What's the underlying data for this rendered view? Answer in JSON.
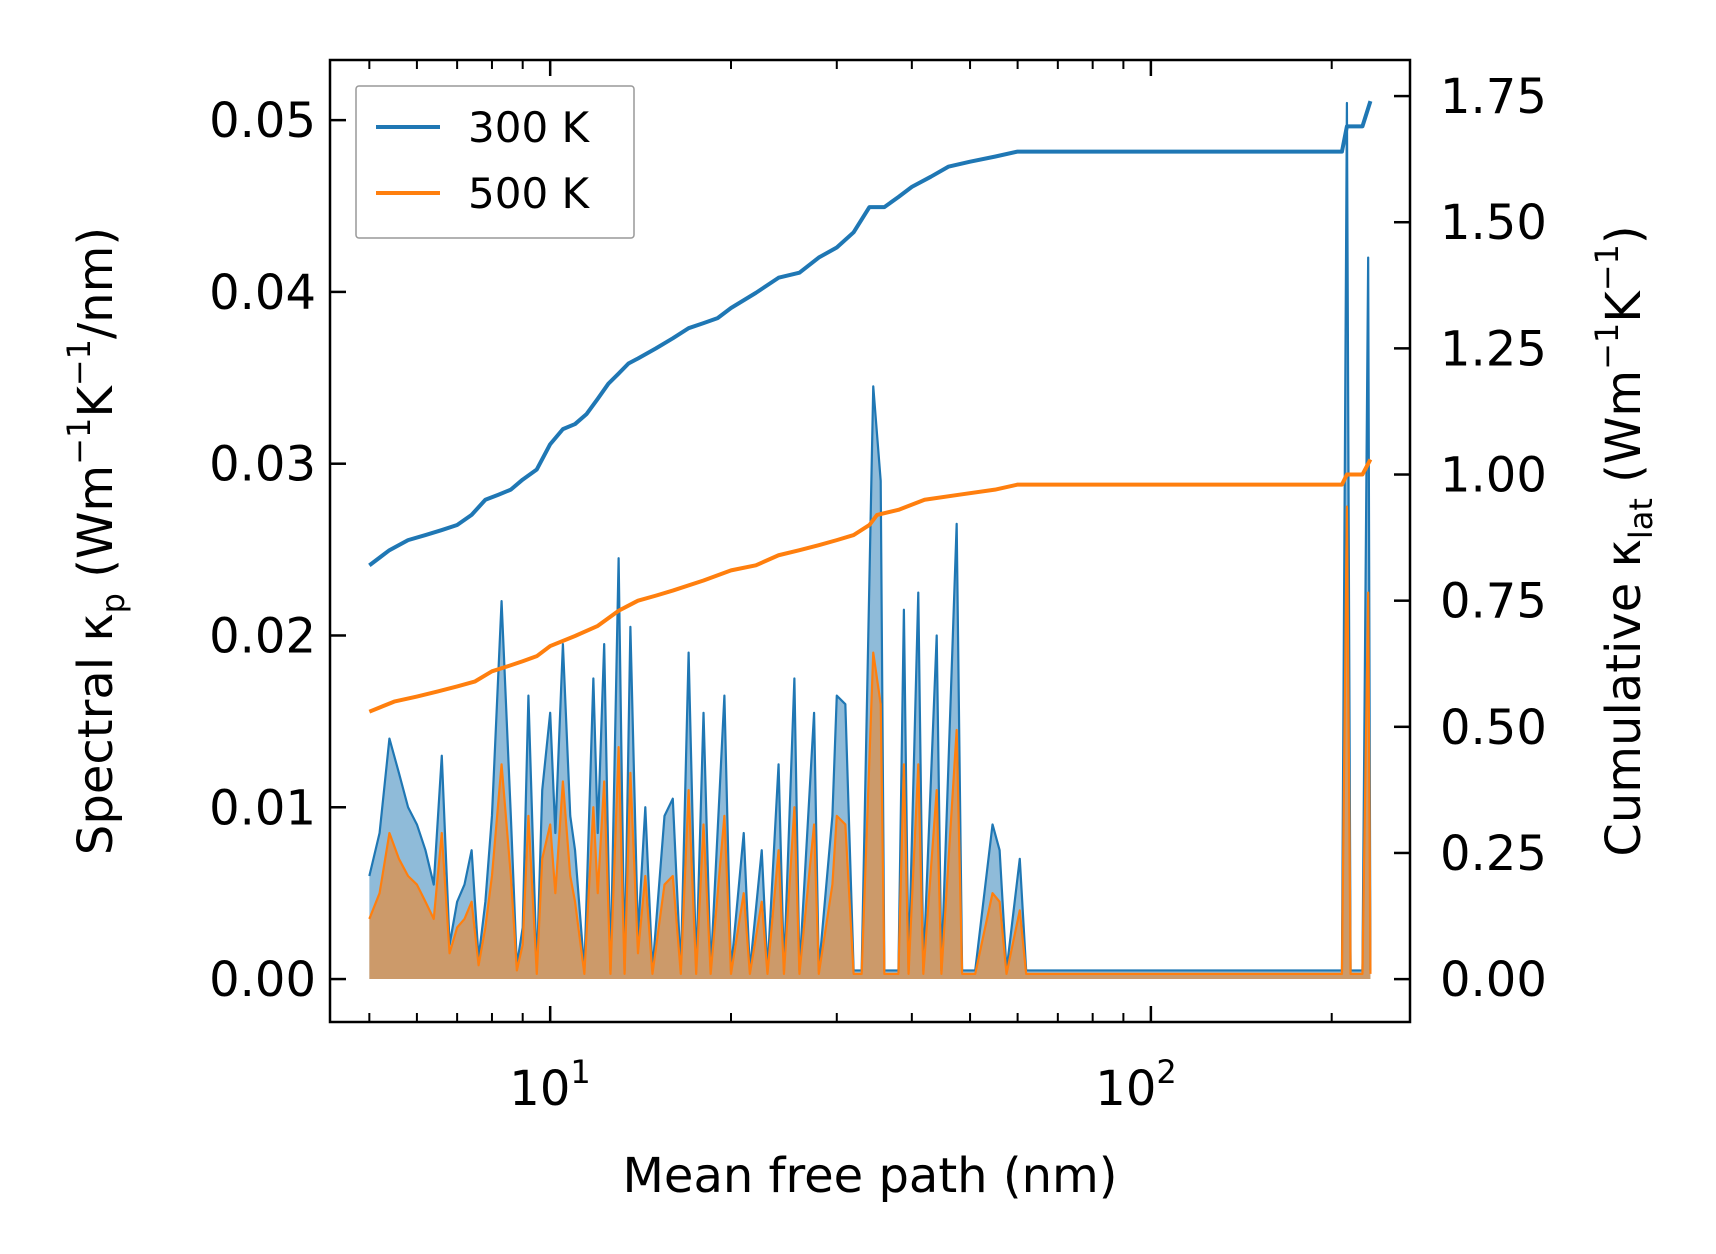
{
  "chart_data": {
    "type": "line",
    "x_scale": "log",
    "xlabel": "Mean free path (nm)",
    "xlim": [
      4.3,
      270
    ],
    "x_ticks": [
      {
        "value": 10,
        "base": "10",
        "exp": "1"
      },
      {
        "value": 100,
        "base": "10",
        "exp": "2"
      }
    ],
    "ylabel_left": {
      "pre": "Spectral κ",
      "sub": "p",
      "mid1": " (Wm",
      "sup1": "−1",
      "mid2": "K",
      "sup2": "−1",
      "post": "/nm)"
    },
    "ylabel_right": {
      "pre": "Cumulative κ",
      "sub": "lat",
      "mid1": " (Wm",
      "sup1": "−1",
      "mid2": "K",
      "sup2": "−1",
      "post": ")"
    },
    "ylim_left": [
      -0.0025,
      0.0535
    ],
    "ylim_right": [
      -0.085,
      1.8215
    ],
    "yticks_left": [
      "0.00",
      "0.01",
      "0.02",
      "0.03",
      "0.04",
      "0.05"
    ],
    "yticks_right": [
      "0.00",
      "0.25",
      "0.50",
      "0.75",
      "1.00",
      "1.25",
      "1.50",
      "1.75"
    ],
    "legend": {
      "location": "top-left",
      "entries": [
        {
          "label": "300 K",
          "color": "#1f77b4"
        },
        {
          "label": "500 K",
          "color": "#ff7f0e"
        }
      ]
    },
    "series": [
      {
        "name": "300 K",
        "color": "#1f77b4",
        "spectral": [
          [
            5.0,
            0.006
          ],
          [
            5.2,
            0.0085
          ],
          [
            5.4,
            0.014
          ],
          [
            5.6,
            0.012
          ],
          [
            5.8,
            0.01
          ],
          [
            6.0,
            0.009
          ],
          [
            6.2,
            0.0075
          ],
          [
            6.4,
            0.0055
          ],
          [
            6.6,
            0.013
          ],
          [
            6.8,
            0.002
          ],
          [
            7.0,
            0.0045
          ],
          [
            7.2,
            0.0055
          ],
          [
            7.4,
            0.0075
          ],
          [
            7.6,
            0.0012
          ],
          [
            7.8,
            0.0045
          ],
          [
            8.0,
            0.0095
          ],
          [
            8.3,
            0.022
          ],
          [
            8.6,
            0.0095
          ],
          [
            8.8,
            0.0008
          ],
          [
            9.0,
            0.003
          ],
          [
            9.2,
            0.0165
          ],
          [
            9.5,
            0.0005
          ],
          [
            9.7,
            0.011
          ],
          [
            10.0,
            0.0155
          ],
          [
            10.2,
            0.0085
          ],
          [
            10.5,
            0.0195
          ],
          [
            10.8,
            0.0095
          ],
          [
            11.0,
            0.0075
          ],
          [
            11.4,
            0.0005
          ],
          [
            11.8,
            0.0175
          ],
          [
            12.0,
            0.0085
          ],
          [
            12.3,
            0.0195
          ],
          [
            12.6,
            0.0005
          ],
          [
            13.0,
            0.0245
          ],
          [
            13.3,
            0.0005
          ],
          [
            13.6,
            0.0205
          ],
          [
            14.0,
            0.0025
          ],
          [
            14.4,
            0.01
          ],
          [
            14.8,
            0.0005
          ],
          [
            15.5,
            0.0095
          ],
          [
            16.0,
            0.0105
          ],
          [
            16.5,
            0.0005
          ],
          [
            17.0,
            0.019
          ],
          [
            17.5,
            0.0005
          ],
          [
            18.0,
            0.0155
          ],
          [
            18.5,
            0.0005
          ],
          [
            19.5,
            0.0165
          ],
          [
            20.0,
            0.0005
          ],
          [
            21.0,
            0.0085
          ],
          [
            21.5,
            0.0005
          ],
          [
            22.5,
            0.0075
          ],
          [
            23.0,
            0.0005
          ],
          [
            24.0,
            0.0125
          ],
          [
            24.5,
            0.0005
          ],
          [
            25.5,
            0.0175
          ],
          [
            26.0,
            0.0005
          ],
          [
            27.5,
            0.0155
          ],
          [
            28.0,
            0.0005
          ],
          [
            29.5,
            0.0095
          ],
          [
            30.0,
            0.0165
          ],
          [
            31.0,
            0.016
          ],
          [
            32.0,
            0.0005
          ],
          [
            33.0,
            0.0005
          ],
          [
            34.5,
            0.0345
          ],
          [
            35.5,
            0.029
          ],
          [
            36.0,
            0.0005
          ],
          [
            38.0,
            0.0005
          ],
          [
            38.8,
            0.0215
          ],
          [
            39.5,
            0.0005
          ],
          [
            41.0,
            0.0225
          ],
          [
            41.8,
            0.0005
          ],
          [
            44.0,
            0.02
          ],
          [
            44.8,
            0.0005
          ],
          [
            47.5,
            0.0265
          ],
          [
            48.5,
            0.0005
          ],
          [
            51.0,
            0.0005
          ],
          [
            54.5,
            0.009
          ],
          [
            56.0,
            0.0075
          ],
          [
            57.5,
            0.0005
          ],
          [
            60.5,
            0.007
          ],
          [
            62.0,
            0.0005
          ],
          [
            65.0,
            0.0005
          ],
          [
            120.0,
            0.0005
          ],
          [
            208.0,
            0.0005
          ],
          [
            212.0,
            0.051
          ],
          [
            215.0,
            0.0005
          ],
          [
            225.0,
            0.0005
          ],
          [
            230.0,
            0.042
          ],
          [
            232.0,
            0.0005
          ]
        ],
        "cumulative": [
          [
            5.0,
            0.82
          ],
          [
            5.4,
            0.85
          ],
          [
            5.8,
            0.87
          ],
          [
            6.2,
            0.88
          ],
          [
            6.6,
            0.89
          ],
          [
            7.0,
            0.9
          ],
          [
            7.4,
            0.92
          ],
          [
            7.8,
            0.95
          ],
          [
            8.2,
            0.96
          ],
          [
            8.6,
            0.97
          ],
          [
            9.0,
            0.99
          ],
          [
            9.5,
            1.01
          ],
          [
            10.0,
            1.06
          ],
          [
            10.5,
            1.09
          ],
          [
            11.0,
            1.1
          ],
          [
            11.5,
            1.12
          ],
          [
            12.0,
            1.15
          ],
          [
            12.5,
            1.18
          ],
          [
            13.0,
            1.2
          ],
          [
            13.5,
            1.22
          ],
          [
            14.0,
            1.23
          ],
          [
            15.0,
            1.25
          ],
          [
            16.0,
            1.27
          ],
          [
            17.0,
            1.29
          ],
          [
            18.0,
            1.3
          ],
          [
            19.0,
            1.31
          ],
          [
            20.0,
            1.33
          ],
          [
            22.0,
            1.36
          ],
          [
            24.0,
            1.39
          ],
          [
            26.0,
            1.4
          ],
          [
            28.0,
            1.43
          ],
          [
            30.0,
            1.45
          ],
          [
            32.0,
            1.48
          ],
          [
            34.0,
            1.53
          ],
          [
            36.0,
            1.53
          ],
          [
            38.0,
            1.55
          ],
          [
            40.0,
            1.57
          ],
          [
            43.0,
            1.59
          ],
          [
            46.0,
            1.61
          ],
          [
            50.0,
            1.62
          ],
          [
            55.0,
            1.63
          ],
          [
            60.0,
            1.64
          ],
          [
            100.0,
            1.64
          ],
          [
            150.0,
            1.64
          ],
          [
            208.0,
            1.64
          ],
          [
            212.0,
            1.69
          ],
          [
            225.0,
            1.69
          ],
          [
            232.0,
            1.74
          ]
        ]
      },
      {
        "name": "500 K",
        "color": "#ff7f0e",
        "spectral": [
          [
            5.0,
            0.0035
          ],
          [
            5.2,
            0.005
          ],
          [
            5.4,
            0.0085
          ],
          [
            5.6,
            0.007
          ],
          [
            5.8,
            0.006
          ],
          [
            6.0,
            0.0055
          ],
          [
            6.2,
            0.0045
          ],
          [
            6.4,
            0.0035
          ],
          [
            6.6,
            0.0085
          ],
          [
            6.8,
            0.0015
          ],
          [
            7.0,
            0.003
          ],
          [
            7.2,
            0.0035
          ],
          [
            7.4,
            0.0045
          ],
          [
            7.6,
            0.0008
          ],
          [
            7.8,
            0.003
          ],
          [
            8.0,
            0.006
          ],
          [
            8.3,
            0.0125
          ],
          [
            8.6,
            0.006
          ],
          [
            8.8,
            0.0005
          ],
          [
            9.0,
            0.002
          ],
          [
            9.2,
            0.0095
          ],
          [
            9.5,
            0.0003
          ],
          [
            9.7,
            0.007
          ],
          [
            10.0,
            0.009
          ],
          [
            10.2,
            0.005
          ],
          [
            10.5,
            0.0115
          ],
          [
            10.8,
            0.006
          ],
          [
            11.0,
            0.0045
          ],
          [
            11.4,
            0.0003
          ],
          [
            11.8,
            0.01
          ],
          [
            12.0,
            0.005
          ],
          [
            12.3,
            0.0115
          ],
          [
            12.6,
            0.0003
          ],
          [
            13.0,
            0.0135
          ],
          [
            13.3,
            0.0003
          ],
          [
            13.6,
            0.012
          ],
          [
            14.0,
            0.0015
          ],
          [
            14.4,
            0.006
          ],
          [
            14.8,
            0.0003
          ],
          [
            15.5,
            0.0055
          ],
          [
            16.0,
            0.006
          ],
          [
            16.5,
            0.0003
          ],
          [
            17.0,
            0.011
          ],
          [
            17.5,
            0.0003
          ],
          [
            18.0,
            0.009
          ],
          [
            18.5,
            0.0003
          ],
          [
            19.5,
            0.0095
          ],
          [
            20.0,
            0.0003
          ],
          [
            21.0,
            0.005
          ],
          [
            21.5,
            0.0003
          ],
          [
            22.5,
            0.0045
          ],
          [
            23.0,
            0.0003
          ],
          [
            24.0,
            0.0075
          ],
          [
            24.5,
            0.0003
          ],
          [
            25.5,
            0.01
          ],
          [
            26.0,
            0.0003
          ],
          [
            27.5,
            0.009
          ],
          [
            28.0,
            0.0003
          ],
          [
            29.5,
            0.0055
          ],
          [
            30.0,
            0.0095
          ],
          [
            31.0,
            0.009
          ],
          [
            32.0,
            0.0003
          ],
          [
            33.0,
            0.0003
          ],
          [
            34.5,
            0.019
          ],
          [
            35.5,
            0.016
          ],
          [
            36.0,
            0.0003
          ],
          [
            38.0,
            0.0003
          ],
          [
            38.8,
            0.0125
          ],
          [
            39.5,
            0.0003
          ],
          [
            41.0,
            0.0125
          ],
          [
            41.8,
            0.0003
          ],
          [
            44.0,
            0.011
          ],
          [
            44.8,
            0.0003
          ],
          [
            47.5,
            0.0145
          ],
          [
            48.5,
            0.0003
          ],
          [
            51.0,
            0.0003
          ],
          [
            54.5,
            0.005
          ],
          [
            56.0,
            0.0045
          ],
          [
            57.5,
            0.0003
          ],
          [
            60.5,
            0.004
          ],
          [
            62.0,
            0.0003
          ],
          [
            65.0,
            0.0003
          ],
          [
            120.0,
            0.0003
          ],
          [
            208.0,
            0.0003
          ],
          [
            212.0,
            0.0275
          ],
          [
            215.0,
            0.0003
          ],
          [
            225.0,
            0.0003
          ],
          [
            230.0,
            0.0225
          ],
          [
            232.0,
            0.0003
          ]
        ],
        "cumulative": [
          [
            5.0,
            0.53
          ],
          [
            5.5,
            0.55
          ],
          [
            6.0,
            0.56
          ],
          [
            6.5,
            0.57
          ],
          [
            7.0,
            0.58
          ],
          [
            7.5,
            0.59
          ],
          [
            8.0,
            0.61
          ],
          [
            8.5,
            0.62
          ],
          [
            9.0,
            0.63
          ],
          [
            9.5,
            0.64
          ],
          [
            10.0,
            0.66
          ],
          [
            11.0,
            0.68
          ],
          [
            12.0,
            0.7
          ],
          [
            13.0,
            0.73
          ],
          [
            14.0,
            0.75
          ],
          [
            15.0,
            0.76
          ],
          [
            16.0,
            0.77
          ],
          [
            18.0,
            0.79
          ],
          [
            20.0,
            0.81
          ],
          [
            22.0,
            0.82
          ],
          [
            24.0,
            0.84
          ],
          [
            26.0,
            0.85
          ],
          [
            28.0,
            0.86
          ],
          [
            30.0,
            0.87
          ],
          [
            32.0,
            0.88
          ],
          [
            34.0,
            0.9
          ],
          [
            35.0,
            0.92
          ],
          [
            38.0,
            0.93
          ],
          [
            42.0,
            0.95
          ],
          [
            48.0,
            0.96
          ],
          [
            55.0,
            0.97
          ],
          [
            60.0,
            0.98
          ],
          [
            100.0,
            0.98
          ],
          [
            150.0,
            0.98
          ],
          [
            208.0,
            0.98
          ],
          [
            212.0,
            1.0
          ],
          [
            225.0,
            1.0
          ],
          [
            232.0,
            1.03
          ]
        ]
      }
    ]
  }
}
